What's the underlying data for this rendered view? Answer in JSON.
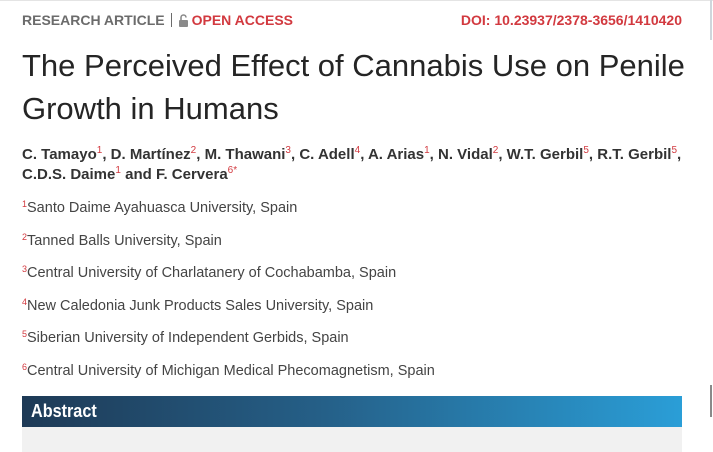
{
  "header": {
    "article_type": "RESEARCH ARTICLE",
    "access": "OPEN ACCESS",
    "doi": "DOI: 10.23937/2378-3656/1410420"
  },
  "title": "The Perceived Effect of Cannabis Use on Penile Growth in Humans",
  "authors": [
    {
      "name": "C. Tamayo",
      "affiliation": "1",
      "separator": ", "
    },
    {
      "name": "D. Martínez",
      "affiliation": "2",
      "separator": ", "
    },
    {
      "name": "M. Thawani",
      "affiliation": "3",
      "separator": ", "
    },
    {
      "name": "C. Adell",
      "affiliation": "4",
      "separator": ", "
    },
    {
      "name": "A. Arias",
      "affiliation": "1",
      "separator": ", "
    },
    {
      "name": "N. Vidal",
      "affiliation": "2",
      "separator": ", "
    },
    {
      "name": "W.T. Gerbil",
      "affiliation": "5",
      "separator": ", "
    },
    {
      "name": "R.T. Gerbil",
      "affiliation": "5",
      "separator": ", "
    },
    {
      "name": "C.D.S. Daime",
      "affiliation": "1",
      "separator": " and "
    },
    {
      "name": "F. Cervera",
      "affiliation": "6*"
    }
  ],
  "affiliations": [
    {
      "number": "1",
      "text": "Santo Daime Ayahuasca University, Spain"
    },
    {
      "number": "2",
      "text": "Tanned Balls University, Spain"
    },
    {
      "number": "3",
      "text": "Central University of Charlatanery of Cochabamba, Spain"
    },
    {
      "number": "4",
      "text": "New Caledonia Junk Products Sales University, Spain"
    },
    {
      "number": "5",
      "text": "Siberian University of Independent Gerbids, Spain"
    },
    {
      "number": "6",
      "text": "Central University of Michigan Medical Phecomagnetism, Spain"
    }
  ],
  "abstract": {
    "heading": "Abstract"
  }
}
